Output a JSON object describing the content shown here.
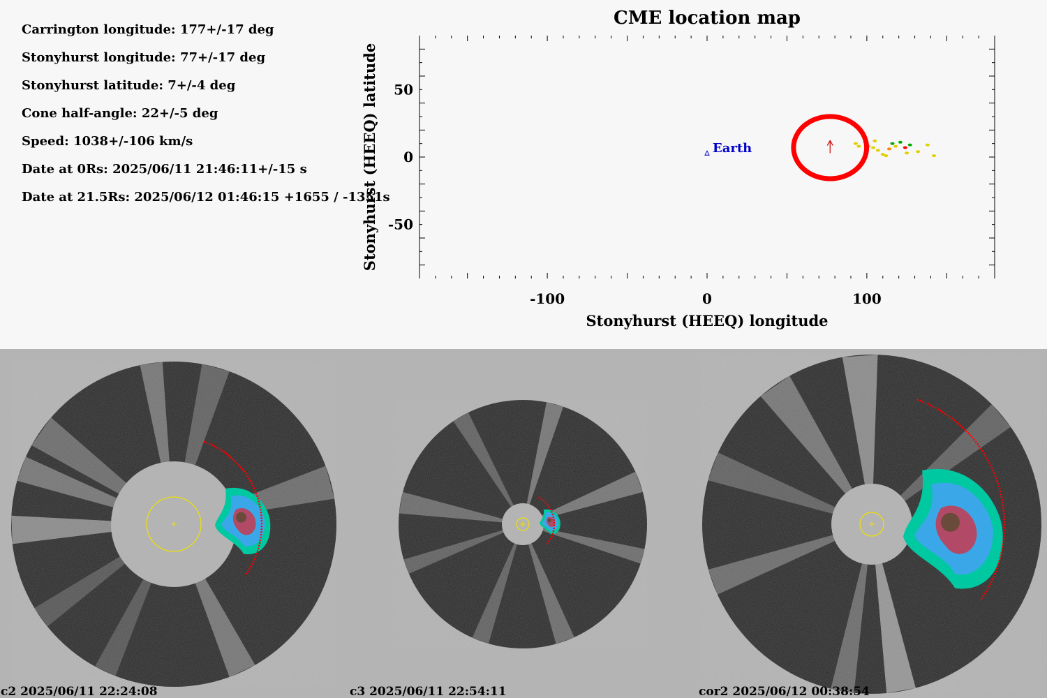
{
  "params": [
    "Carrington longitude: 177+/-17 deg",
    "Stonyhurst longitude: 77+/-17 deg",
    "Stonyhurst latitude: 7+/-4 deg",
    "Cone half-angle: 22+/-5 deg",
    "Speed: 1038+/-106 km/s",
    "Date at 0Rs: 2025/06/11 21:46:11+/-15 s",
    "Date at 21.5Rs: 2025/06/12 01:46:15 +1655 / -1351s"
  ],
  "chart_data": {
    "type": "scatter",
    "title": "CME location map",
    "xlabel": "Stonyhurst (HEEQ) longitude",
    "ylabel": "Stonyhurst (HEEQ) latitude",
    "xlim": [
      -180,
      180
    ],
    "ylim": [
      -90,
      90
    ],
    "xticks": [
      -100,
      0,
      100
    ],
    "yticks": [
      -50,
      0,
      50
    ],
    "earth": {
      "label": "Earth",
      "lon": 0,
      "lat": 3,
      "color": "#0000cc"
    },
    "cme": {
      "lon": 77,
      "lat": 7,
      "half_angle": 22,
      "color": "#ff0000"
    },
    "detections": [
      {
        "lon": 93,
        "lat": 10,
        "color": "#e0d000"
      },
      {
        "lon": 95,
        "lat": 8,
        "color": "#e0d000"
      },
      {
        "lon": 99,
        "lat": 11,
        "color": "#ff8800"
      },
      {
        "lon": 101,
        "lat": 8,
        "color": "#e0d000"
      },
      {
        "lon": 104,
        "lat": 7,
        "color": "#e0d000"
      },
      {
        "lon": 105,
        "lat": 12,
        "color": "#e0d000"
      },
      {
        "lon": 107,
        "lat": 5,
        "color": "#e0d000"
      },
      {
        "lon": 110,
        "lat": 2,
        "color": "#e0d000"
      },
      {
        "lon": 112,
        "lat": 1,
        "color": "#e0d000"
      },
      {
        "lon": 114,
        "lat": 6,
        "color": "#ff8800"
      },
      {
        "lon": 116,
        "lat": 10,
        "color": "#00aa00"
      },
      {
        "lon": 118,
        "lat": 8,
        "color": "#e0d000"
      },
      {
        "lon": 121,
        "lat": 11,
        "color": "#00aa00"
      },
      {
        "lon": 124,
        "lat": 7,
        "color": "#ff0000"
      },
      {
        "lon": 125,
        "lat": 3,
        "color": "#e0d000"
      },
      {
        "lon": 127,
        "lat": 9,
        "color": "#00aa00"
      },
      {
        "lon": 132,
        "lat": 4,
        "color": "#e0d000"
      },
      {
        "lon": 138,
        "lat": 9,
        "color": "#e0d000"
      },
      {
        "lon": 142,
        "lat": 1,
        "color": "#e0d000"
      }
    ]
  },
  "panels": [
    {
      "caption": "c2 2025/06/11 22:24:08"
    },
    {
      "caption": "c3 2025/06/11 22:54:11"
    },
    {
      "caption": "cor2 2025/06/12 00:38:54"
    }
  ]
}
